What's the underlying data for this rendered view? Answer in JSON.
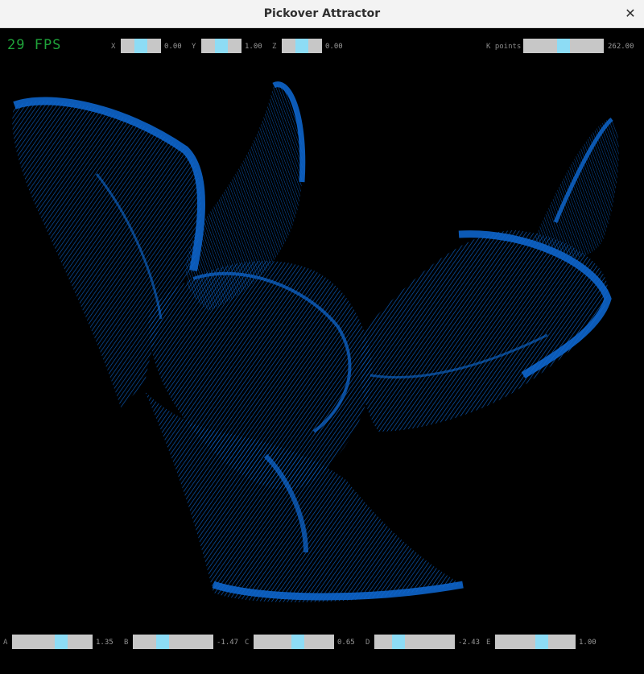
{
  "window": {
    "title": "Pickover Attractor",
    "close_glyph": "✕"
  },
  "hud": {
    "fps": "29 FPS"
  },
  "sliders_top": [
    {
      "label": "X",
      "value": "0.00",
      "fraction": 0.5
    },
    {
      "label": "Y",
      "value": "1.00",
      "fraction": 0.5
    },
    {
      "label": "Z",
      "value": "0.00",
      "fraction": 0.5
    }
  ],
  "points_slider": {
    "label": "K points",
    "value": "262.00",
    "fraction": 0.5
  },
  "sliders_bottom": [
    {
      "label": "A",
      "value": "1.35",
      "fraction": 0.63
    },
    {
      "label": "B",
      "value": "-1.47",
      "fraction": 0.35
    },
    {
      "label": "C",
      "value": "0.65",
      "fraction": 0.56
    },
    {
      "label": "D",
      "value": "-2.43",
      "fraction": 0.26
    },
    {
      "label": "E",
      "value": "1.00",
      "fraction": 0.6
    }
  ],
  "colors": {
    "points": "#0b63c9",
    "fps": "#1fa33a",
    "knob": "#8ddcf5",
    "track": "#c7c7c7"
  }
}
